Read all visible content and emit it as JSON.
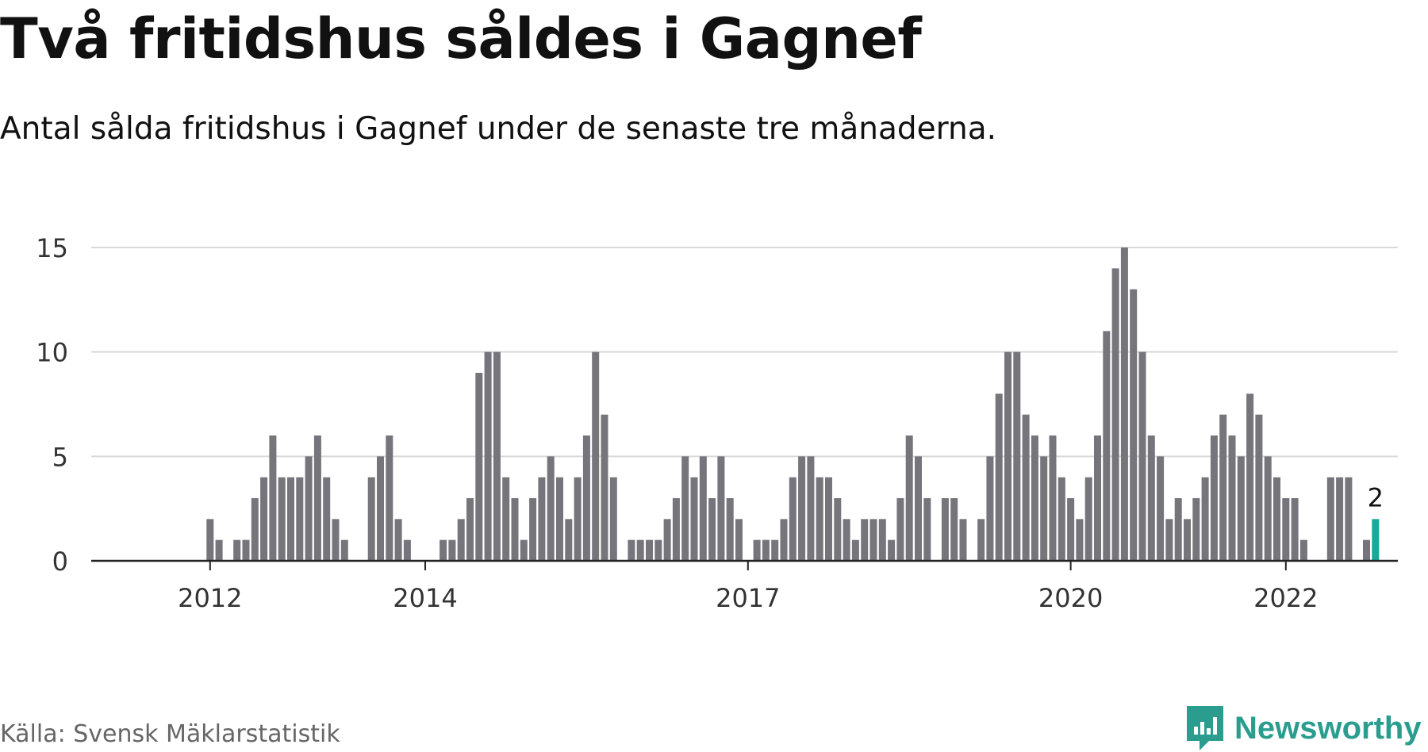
{
  "title": "Två fritidshus såldes i Gagnef",
  "subtitle": "Antal sålda fritidshus i Gagnef under de senaste tre månaderna.",
  "source": "Källa: Svensk Mäklarstatistik",
  "brand": {
    "name": "Newsworthy",
    "icon": "newsworthy-logo-icon"
  },
  "colors": {
    "bar": "#76757b",
    "highlight": "#1aa89a",
    "grid": "#d9d9d9",
    "axis": "#222222",
    "brand": "#2a9d8f"
  },
  "chart_data": {
    "type": "bar",
    "title": "Två fritidshus såldes i Gagnef",
    "xlabel": "",
    "ylabel": "",
    "ylim": [
      0,
      15
    ],
    "yticks": [
      0,
      5,
      10,
      15
    ],
    "xtick_labels": [
      {
        "label": "2012",
        "index": 6
      },
      {
        "label": "2014",
        "index": 30
      },
      {
        "label": "2017",
        "index": 66
      },
      {
        "label": "2020",
        "index": 102
      },
      {
        "label": "2022",
        "index": 126
      }
    ],
    "grid": true,
    "highlight_label": "2",
    "values": [
      0,
      0,
      0,
      0,
      0,
      0,
      2,
      1,
      0,
      1,
      1,
      3,
      4,
      6,
      4,
      4,
      4,
      5,
      6,
      4,
      2,
      1,
      0,
      0,
      4,
      5,
      6,
      2,
      1,
      0,
      0,
      0,
      1,
      1,
      2,
      3,
      9,
      10,
      10,
      4,
      3,
      1,
      3,
      4,
      5,
      4,
      2,
      4,
      6,
      10,
      7,
      4,
      0,
      1,
      1,
      1,
      1,
      2,
      3,
      5,
      4,
      5,
      3,
      5,
      3,
      2,
      0,
      1,
      1,
      1,
      2,
      4,
      5,
      5,
      4,
      4,
      3,
      2,
      1,
      2,
      2,
      2,
      1,
      3,
      6,
      5,
      3,
      0,
      3,
      3,
      2,
      0,
      2,
      5,
      8,
      10,
      10,
      7,
      6,
      5,
      6,
      4,
      3,
      2,
      4,
      6,
      11,
      14,
      15,
      13,
      10,
      6,
      5,
      2,
      3,
      2,
      3,
      4,
      6,
      7,
      6,
      5,
      8,
      7,
      5,
      4,
      3,
      3,
      1,
      0,
      0,
      4,
      4,
      4,
      0,
      1,
      2
    ]
  }
}
